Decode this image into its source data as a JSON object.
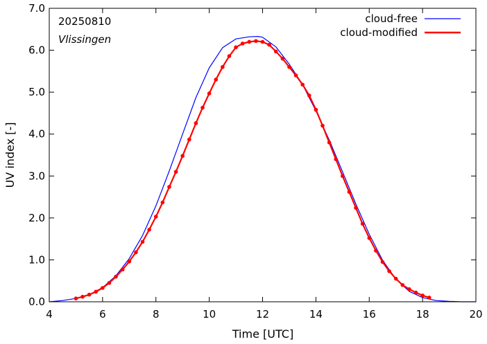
{
  "chart_data": {
    "type": "line",
    "date_label": "20250810",
    "location": "Vlissingen",
    "xlabel": "Time  [UTC]",
    "ylabel": "UV index  [-]",
    "xlim": [
      4,
      20
    ],
    "ylim": [
      0,
      7
    ],
    "x_ticks": [
      "4",
      "6",
      "8",
      "10",
      "12",
      "14",
      "16",
      "18",
      "20"
    ],
    "y_ticks": [
      "0.0",
      "1.0",
      "2.0",
      "3.0",
      "4.0",
      "5.0",
      "6.0",
      "7.0"
    ],
    "legend_position": "top-right",
    "grid": false,
    "series": [
      {
        "name": "cloud-free",
        "color": "#0000ff",
        "style": "line",
        "x": [
          4.0,
          4.5,
          5.0,
          5.5,
          6.0,
          6.5,
          7.0,
          7.5,
          8.0,
          8.5,
          9.0,
          9.5,
          10.0,
          10.5,
          11.0,
          11.5,
          11.83,
          12.0,
          12.5,
          13.0,
          13.5,
          14.0,
          14.5,
          15.0,
          15.5,
          16.0,
          16.5,
          17.0,
          17.5,
          18.0,
          18.5,
          19.0,
          19.5,
          20.0
        ],
        "y": [
          0.0,
          0.03,
          0.08,
          0.17,
          0.34,
          0.62,
          1.03,
          1.58,
          2.29,
          3.12,
          4.0,
          4.87,
          5.58,
          6.06,
          6.27,
          6.32,
          6.33,
          6.31,
          6.08,
          5.67,
          5.18,
          4.55,
          3.86,
          3.1,
          2.33,
          1.61,
          0.99,
          0.54,
          0.25,
          0.1,
          0.03,
          0.01,
          0.0,
          0.0
        ]
      },
      {
        "name": "cloud-modified",
        "color": "#ff0000",
        "style": "line-markers",
        "x": [
          5.0,
          5.25,
          5.5,
          5.75,
          6.0,
          6.25,
          6.5,
          6.75,
          7.0,
          7.25,
          7.5,
          7.75,
          8.0,
          8.25,
          8.5,
          8.75,
          9.0,
          9.25,
          9.5,
          9.75,
          10.0,
          10.25,
          10.5,
          10.75,
          11.0,
          11.25,
          11.5,
          11.75,
          12.0,
          12.25,
          12.5,
          12.75,
          13.0,
          13.25,
          13.5,
          13.75,
          14.0,
          14.25,
          14.5,
          14.75,
          15.0,
          15.25,
          15.5,
          15.75,
          16.0,
          16.25,
          16.5,
          16.75,
          17.0,
          17.25,
          17.5,
          17.75,
          18.0,
          18.25
        ],
        "y": [
          0.08,
          0.12,
          0.17,
          0.24,
          0.33,
          0.45,
          0.6,
          0.77,
          0.96,
          1.18,
          1.43,
          1.72,
          2.03,
          2.37,
          2.74,
          3.1,
          3.48,
          3.87,
          4.26,
          4.63,
          4.97,
          5.3,
          5.6,
          5.86,
          6.07,
          6.16,
          6.2,
          6.22,
          6.2,
          6.13,
          5.97,
          5.8,
          5.6,
          5.4,
          5.18,
          4.92,
          4.58,
          4.2,
          3.8,
          3.4,
          3.0,
          2.62,
          2.24,
          1.86,
          1.52,
          1.22,
          0.95,
          0.73,
          0.55,
          0.4,
          0.3,
          0.22,
          0.15,
          0.1
        ]
      }
    ]
  }
}
